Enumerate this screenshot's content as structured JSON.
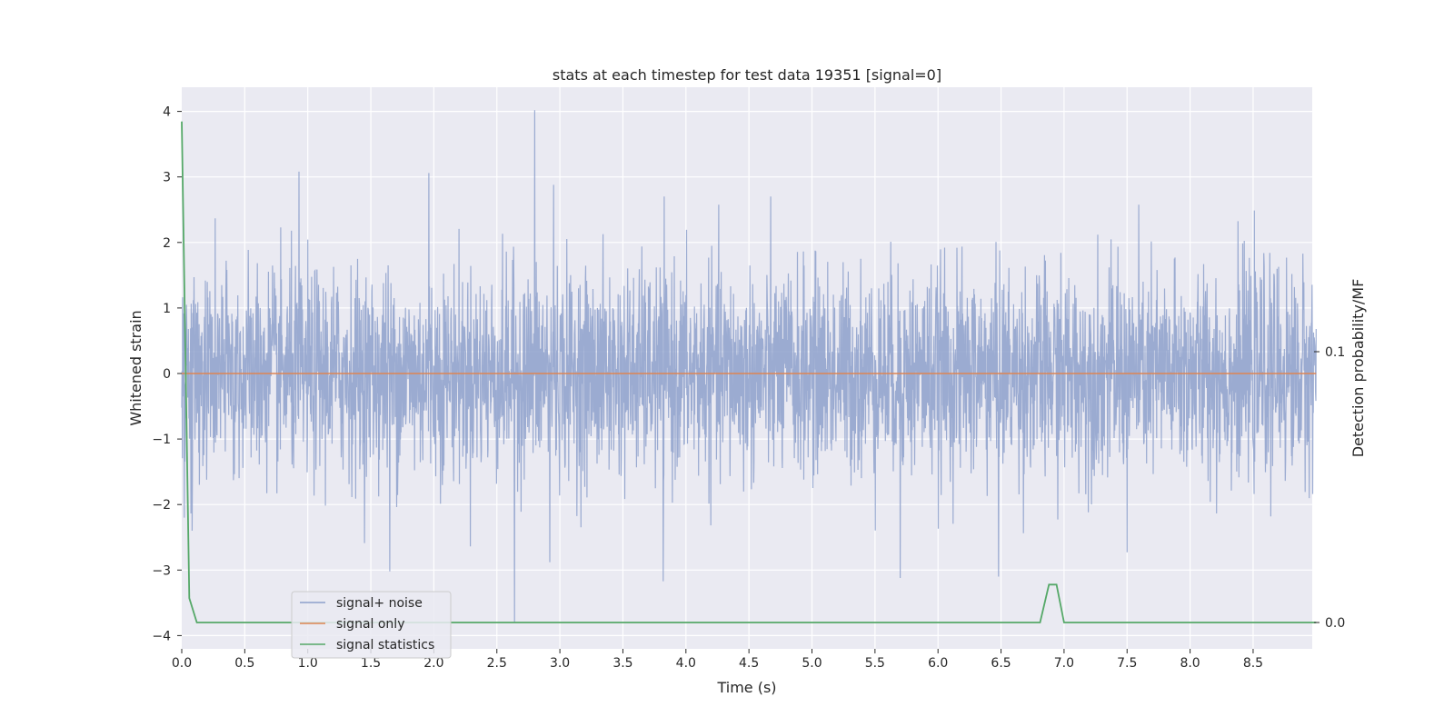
{
  "chart_data": {
    "type": "line",
    "title": "stats at each timestep for test data 19351 [signal=0]",
    "xlabel": "Time (s)",
    "ylabel_left": "Whitened strain",
    "ylabel_right": "Detection probability/MF",
    "xlim": [
      0.0,
      9.0
    ],
    "ylim_left": [
      -4.15,
      4.4
    ],
    "ylim_right": [
      -0.009,
      0.2
    ],
    "xticks": [
      0.0,
      0.5,
      1.0,
      1.5,
      2.0,
      2.5,
      3.0,
      3.5,
      4.0,
      4.5,
      5.0,
      5.5,
      6.0,
      6.5,
      7.0,
      7.5,
      8.0,
      8.5
    ],
    "xtick_labels": [
      "0.0",
      "0.5",
      "1.0",
      "1.5",
      "2.0",
      "2.5",
      "3.0",
      "3.5",
      "4.0",
      "4.5",
      "5.0",
      "5.5",
      "6.0",
      "6.5",
      "7.0",
      "7.5",
      "8.0",
      "8.5"
    ],
    "yticks_left": [
      4,
      3,
      2,
      1,
      0,
      -1,
      -2,
      -3,
      -4
    ],
    "ytick_labels_left": [
      "4",
      "3",
      "2",
      "1",
      "0",
      "−1",
      "−2",
      "−3",
      "−4"
    ],
    "yticks_right": [
      0.1,
      0.0
    ],
    "ytick_labels_right": [
      "0.1",
      "0.0"
    ],
    "grid": true,
    "legend_position": "lower-left",
    "series": [
      {
        "name": "signal+ noise",
        "axis": "left",
        "color": "#8da0cb",
        "description": "whitened noise, approx N(0,0.8), spikes listed",
        "spikes": [
          [
            0.93,
            3.08
          ],
          [
            1.96,
            3.06
          ],
          [
            2.8,
            4.02
          ],
          [
            2.95,
            2.88
          ],
          [
            2.64,
            -3.8
          ],
          [
            1.65,
            -3.02
          ],
          [
            2.92,
            -2.88
          ],
          [
            3.82,
            -3.17
          ],
          [
            5.7,
            -3.12
          ],
          [
            6.48,
            -3.1
          ],
          [
            7.5,
            -2.73
          ],
          [
            0.02,
            -2.2
          ]
        ]
      },
      {
        "name": "signal only",
        "axis": "left",
        "color": "#dd8452",
        "x": [
          0.0,
          9.0
        ],
        "y": [
          0.0,
          0.0
        ]
      },
      {
        "name": "signal statistics",
        "axis": "right",
        "color": "#55a868",
        "x": [
          0.0,
          0.06,
          0.12,
          6.81,
          6.88,
          6.94,
          7.0,
          9.0
        ],
        "y": [
          0.185,
          0.009,
          0.0,
          0.0,
          0.014,
          0.014,
          0.0,
          0.0
        ]
      }
    ]
  }
}
